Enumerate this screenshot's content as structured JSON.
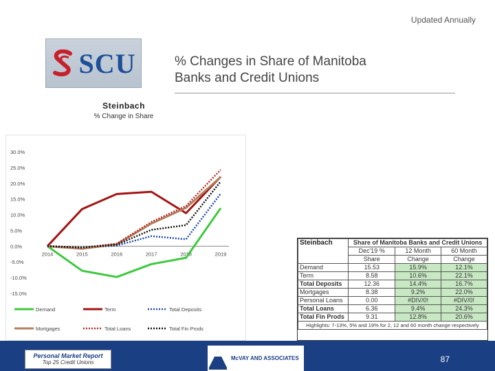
{
  "header": {
    "updated": "Updated Annually",
    "logo_text": "SCU",
    "title_line1": "% Changes in Share of Manitoba",
    "title_line2": "Banks and Credit Unions"
  },
  "colors": {
    "demand": "#3ec83e",
    "term": "#a31414",
    "total_deposits": "#1f4ab3",
    "mortgages": "#b08060",
    "total_loans": "#b82828",
    "total_fin_prods": "#111111",
    "footer": "#1b3f83",
    "table_highlight": "#c7e8c3"
  },
  "chart_data": {
    "type": "line",
    "title": "Steinbach",
    "subtitle": "% Change in Share",
    "categories": [
      "2014",
      "2015",
      "2016",
      "2017",
      "2018",
      "2019"
    ],
    "y_ticks": [
      "30.0%",
      "25.0%",
      "20.0%",
      "15.0%",
      "10.0%",
      "5.0%",
      "0.0%",
      "-5.0%",
      "-10.0%",
      "-15.0%"
    ],
    "ylim": [
      -15,
      30
    ],
    "grid": false,
    "legend_position": "bottom",
    "series": [
      {
        "name": "Demand",
        "color": "#3ec83e",
        "style": "solid",
        "width": 3,
        "values": [
          0.0,
          -7.8,
          -9.8,
          -5.7,
          -3.7,
          12.1
        ]
      },
      {
        "name": "Term",
        "color": "#a31414",
        "style": "solid",
        "width": 3,
        "values": [
          0.0,
          11.8,
          16.6,
          17.3,
          10.5,
          22.1
        ]
      },
      {
        "name": "Total Deposits",
        "color": "#1f4ab3",
        "style": "dotted",
        "width": 2.5,
        "values": [
          0.0,
          -0.5,
          0.2,
          3.2,
          2.2,
          16.7
        ]
      },
      {
        "name": "Mortgages",
        "color": "#b08060",
        "style": "solid",
        "width": 3,
        "values": [
          0.0,
          -0.8,
          0.6,
          7.2,
          12.2,
          22.0
        ]
      },
      {
        "name": "Total Loans",
        "color": "#b82828",
        "style": "dotted",
        "width": 2.5,
        "values": [
          0.0,
          -0.5,
          0.8,
          7.7,
          12.8,
          24.3
        ]
      },
      {
        "name": "Total Fin Prods",
        "color": "#111111",
        "style": "dotted",
        "width": 2.5,
        "values": [
          0.0,
          -0.4,
          0.5,
          5.2,
          6.7,
          20.6
        ]
      }
    ]
  },
  "table": {
    "corner": "Steinbach",
    "header_main": "Share of Manitoba Banks and Credit Unions",
    "col_dec": "Dec'19 %",
    "col_dec_sub": "Share",
    "col_12": "12 Month",
    "col_12_sub": "Change",
    "col_60": "60 Month",
    "col_60_sub": "Change",
    "rows": [
      {
        "label": "Demand",
        "share": "15.53",
        "m12": "15.9%",
        "m60": "12.1%",
        "bold": false
      },
      {
        "label": "Term",
        "share": "8.58",
        "m12": "10.6%",
        "m60": "22.1%",
        "bold": false
      },
      {
        "label": "Total Deposits",
        "share": "12.36",
        "m12": "14.4%",
        "m60": "16.7%",
        "bold": true
      },
      {
        "label": "Mortgages",
        "share": "8.38",
        "m12": "9.2%",
        "m60": "22.0%",
        "bold": false
      },
      {
        "label": "Personal Loans",
        "share": "0.00",
        "m12": "#DIV/0!",
        "m60": "#DIV/0!",
        "bold": false
      },
      {
        "label": "Total Loans",
        "share": "6.36",
        "m12": "9.4%",
        "m60": "24.3%",
        "bold": true
      },
      {
        "label": "Total Fin Prods",
        "share": "9.31",
        "m12": "12.8%",
        "m60": "20.6%",
        "bold": true
      }
    ],
    "highlights": "Highlights: 7-13%, 5% and 19% for 2, 12 and 60 month change respectively"
  },
  "footer": {
    "report_line1": "Personal Market Report",
    "report_line2": "Top 25 Credit Unions",
    "brand": "McVAY AND ASSOCIATES",
    "page": "87"
  }
}
